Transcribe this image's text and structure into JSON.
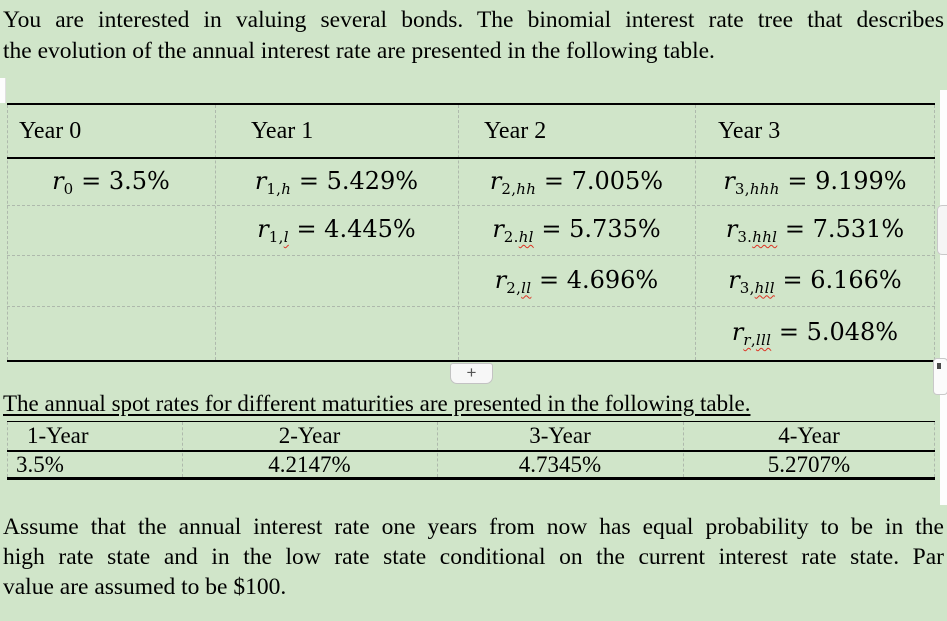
{
  "intro": {
    "line1": "You are interested in valuing several bonds. The binomial interest rate tree that describes",
    "line2": "the evolution of the annual interest rate are presented in the following table."
  },
  "tree_table": {
    "headers": [
      "Year 0",
      "Year 1",
      "Year 2",
      "Year 3"
    ],
    "rows": [
      [
        {
          "base": "r",
          "sub": [
            {
              "t": "0",
              "i": false,
              "f": false
            }
          ],
          "eq": " = 3.5%"
        },
        {
          "base": "r",
          "sub": [
            {
              "t": "1,",
              "i": false,
              "f": false
            },
            {
              "t": "h",
              "i": true,
              "f": false
            }
          ],
          "eq": " = 5.429%"
        },
        {
          "base": "r",
          "sub": [
            {
              "t": "2,",
              "i": false,
              "f": false
            },
            {
              "t": "hh",
              "i": true,
              "f": false
            }
          ],
          "eq": " = 7.005%"
        },
        {
          "base": "r",
          "sub": [
            {
              "t": "3,",
              "i": false,
              "f": false
            },
            {
              "t": "hhh",
              "i": true,
              "f": false
            }
          ],
          "eq": " = 9.199%"
        }
      ],
      [
        null,
        {
          "base": "r",
          "sub": [
            {
              "t": "1,",
              "i": false,
              "f": false
            },
            {
              "t": "l",
              "i": true,
              "f": true
            }
          ],
          "eq": " = 4.445%"
        },
        {
          "base": "r",
          "sub": [
            {
              "t": "2.",
              "i": false,
              "f": false
            },
            {
              "t": "hl",
              "i": true,
              "f": true
            }
          ],
          "eq": " = 5.735%"
        },
        {
          "base": "r",
          "sub": [
            {
              "t": "3.",
              "i": false,
              "f": false
            },
            {
              "t": "hhl",
              "i": true,
              "f": true
            }
          ],
          "eq": " = 7.531%"
        }
      ],
      [
        null,
        null,
        {
          "base": "r",
          "sub": [
            {
              "t": "2,",
              "i": false,
              "f": false
            },
            {
              "t": "ll",
              "i": true,
              "f": true
            }
          ],
          "eq": " = 4.696%"
        },
        {
          "base": "r",
          "sub": [
            {
              "t": "3,",
              "i": false,
              "f": false
            },
            {
              "t": "hll",
              "i": true,
              "f": true
            }
          ],
          "eq": " = 6.166%"
        }
      ],
      [
        null,
        null,
        null,
        {
          "base": "r",
          "sub": [
            {
              "t": "r",
              "i": true,
              "f": true
            },
            {
              "t": ",",
              "i": false,
              "f": false
            },
            {
              "t": "lll",
              "i": true,
              "f": true
            }
          ],
          "eq": " = 5.048%"
        }
      ]
    ]
  },
  "add_row_button": {
    "label": "+"
  },
  "spot_intro": "The annual spot rates for different maturities are presented in the following table.",
  "spot_table": {
    "headers": [
      "1-Year",
      "2-Year",
      "3-Year",
      "4-Year"
    ],
    "rates": [
      "3.5%",
      "4.2147%",
      "4.7345%",
      "5.2707%"
    ]
  },
  "assumption": {
    "line1": "Assume that the annual interest rate one years from now has equal probability to be in the",
    "line2": "high rate state and in the low rate state conditional on the current interest rate state. Par",
    "line3": "value are assumed to be $100."
  },
  "colors": {
    "highlight_green": "#d0e5c9",
    "grid_dash": "#aeb9ac",
    "rule_black": "#000000",
    "spellcheck_red": "#dd3222",
    "button_bg": "#f7f7f7",
    "button_border": "#c3c3c3"
  }
}
